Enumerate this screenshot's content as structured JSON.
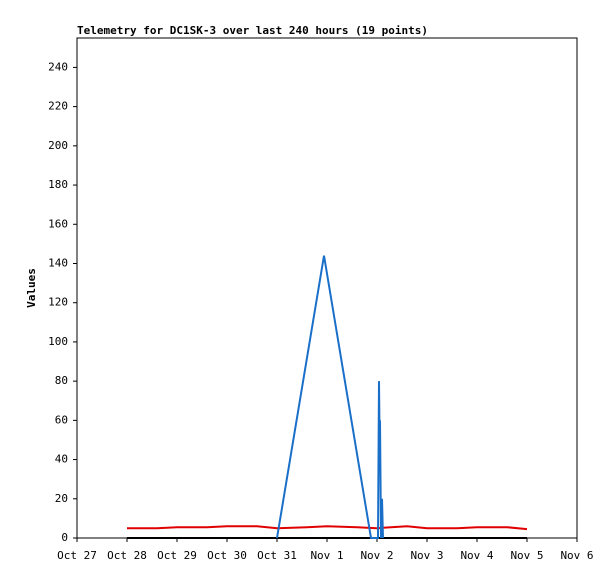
{
  "chart_data": {
    "type": "line",
    "title": "Telemetry for DC1SK-3 over last 240 hours (19 points)",
    "y_label": "Values",
    "xlim": [
      0,
      10
    ],
    "xticks": [
      {
        "value": 0,
        "label": "Oct 27"
      },
      {
        "value": 1,
        "label": "Oct 28"
      },
      {
        "value": 2,
        "label": "Oct 29"
      },
      {
        "value": 3,
        "label": "Oct 30"
      },
      {
        "value": 4,
        "label": "Oct 31"
      },
      {
        "value": 5,
        "label": "Nov 1"
      },
      {
        "value": 6,
        "label": "Nov 2"
      },
      {
        "value": 7,
        "label": "Nov 3"
      },
      {
        "value": 8,
        "label": "Nov 4"
      },
      {
        "value": 9,
        "label": "Nov 5"
      },
      {
        "value": 10,
        "label": "Nov 6"
      }
    ],
    "ylim": [
      0,
      255
    ],
    "yticks": [
      0,
      20,
      40,
      60,
      80,
      100,
      120,
      140,
      160,
      180,
      200,
      220,
      240
    ],
    "series": [
      {
        "color": "#000000",
        "x": [
          1,
          9
        ],
        "values": [
          0,
          0
        ]
      },
      {
        "color": "#e00000",
        "x": [
          1,
          1.6,
          2,
          2.6,
          3,
          3.6,
          4,
          4.6,
          5,
          5.6,
          6,
          6.6,
          7,
          7.6,
          8,
          8.6,
          9
        ],
        "values": [
          5,
          5,
          5.5,
          5.5,
          6,
          6,
          5,
          5.5,
          6,
          5.5,
          5,
          6,
          5,
          5,
          5.5,
          5.5,
          4.5
        ]
      },
      {
        "color": "#1a6fc8",
        "x": [
          4,
          4.94,
          5.88,
          6.02,
          6.04,
          6.05,
          6.06,
          6.08,
          6.1,
          6.12
        ],
        "values": [
          0,
          144,
          0,
          0,
          80,
          55,
          60,
          0,
          20,
          0
        ]
      }
    ]
  }
}
